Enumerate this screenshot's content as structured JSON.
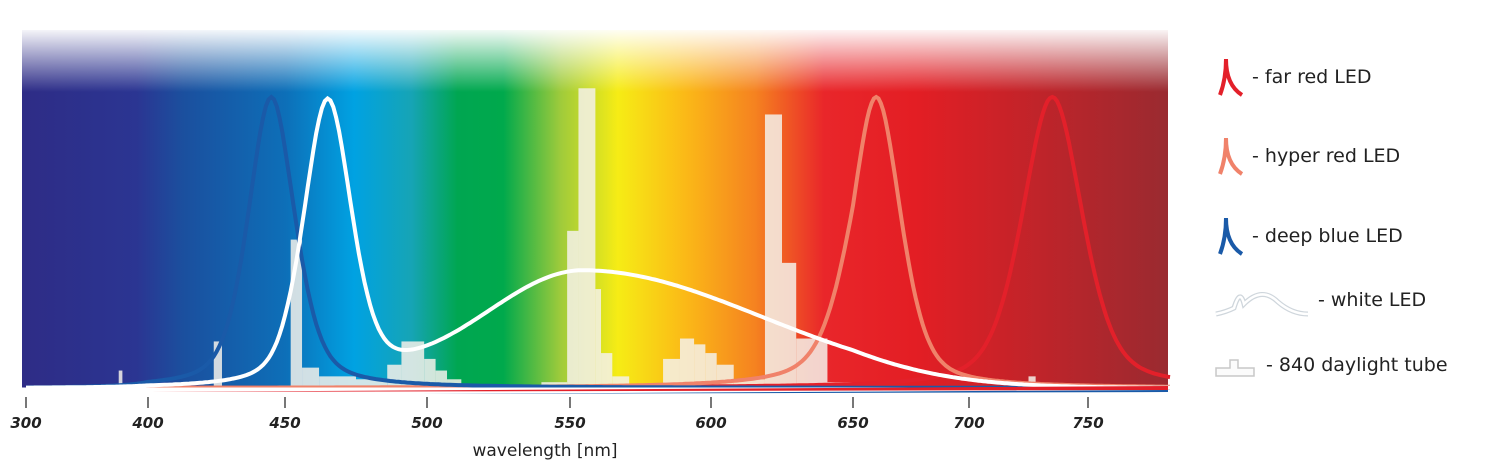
{
  "chart_data": {
    "type": "line",
    "title": "",
    "xlabel": "wavelength [nm]",
    "ylabel": "",
    "xlim": [
      300,
      785
    ],
    "ylim": [
      0,
      1.05
    ],
    "x_ticks": [
      300,
      400,
      450,
      500,
      550,
      600,
      650,
      700,
      750
    ],
    "x_tick_labels": [
      "300",
      "400",
      "450",
      "500",
      "550",
      "600",
      "650",
      "700",
      "750"
    ],
    "grid": false,
    "legend_placement": "right",
    "series": [
      {
        "name": "far red LED",
        "kind": "peak",
        "color": "#e3202a",
        "peak_nm": 735,
        "fwhm_nm": 30,
        "value": 1.0
      },
      {
        "name": "hyper red LED",
        "kind": "peak",
        "color": "#f0826a",
        "peak_nm": 660,
        "fwhm_nm": 25,
        "value": 1.0
      },
      {
        "name": "deep blue LED",
        "kind": "peak",
        "color": "#1a5aa8",
        "peak_nm": 445,
        "fwhm_nm": 20,
        "value": 1.0
      },
      {
        "name": "white LED",
        "kind": "white",
        "color": "#ffffff",
        "components": [
          {
            "peak_nm": 465,
            "fwhm_nm": 20,
            "value": 0.98
          },
          {
            "peak_nm": 555,
            "fwhm_nm": 110,
            "value": 0.4
          }
        ]
      },
      {
        "name": "840 daylight tube",
        "kind": "bars",
        "color": "#f4f1ea",
        "bars": [
          [
            376,
            379,
            0.06
          ],
          [
            424,
            427,
            0.16
          ],
          [
            452,
            456,
            0.51
          ],
          [
            456,
            462,
            0.07
          ],
          [
            462,
            475,
            0.04
          ],
          [
            475,
            486,
            0.03
          ],
          [
            486,
            491,
            0.08
          ],
          [
            491,
            499,
            0.16
          ],
          [
            499,
            503,
            0.1
          ],
          [
            503,
            507,
            0.06
          ],
          [
            507,
            512,
            0.03
          ],
          [
            540,
            549,
            0.02
          ],
          [
            549,
            553,
            0.54
          ],
          [
            553,
            559,
            1.03
          ],
          [
            559,
            561,
            0.34
          ],
          [
            561,
            565,
            0.12
          ],
          [
            565,
            571,
            0.04
          ],
          [
            583,
            589,
            0.1
          ],
          [
            589,
            594,
            0.17
          ],
          [
            594,
            598,
            0.15
          ],
          [
            598,
            602,
            0.12
          ],
          [
            602,
            608,
            0.08
          ],
          [
            608,
            619,
            0.03
          ],
          [
            619,
            625,
            0.94
          ],
          [
            625,
            630,
            0.43
          ],
          [
            630,
            641,
            0.17
          ],
          [
            641,
            650,
            0.02
          ],
          [
            725,
            728,
            0.04
          ]
        ]
      }
    ],
    "legend": [
      "- far red LED",
      "- hyper red LED",
      "- deep blue LED",
      "- white LED",
      "- 840 daylight tube"
    ]
  }
}
